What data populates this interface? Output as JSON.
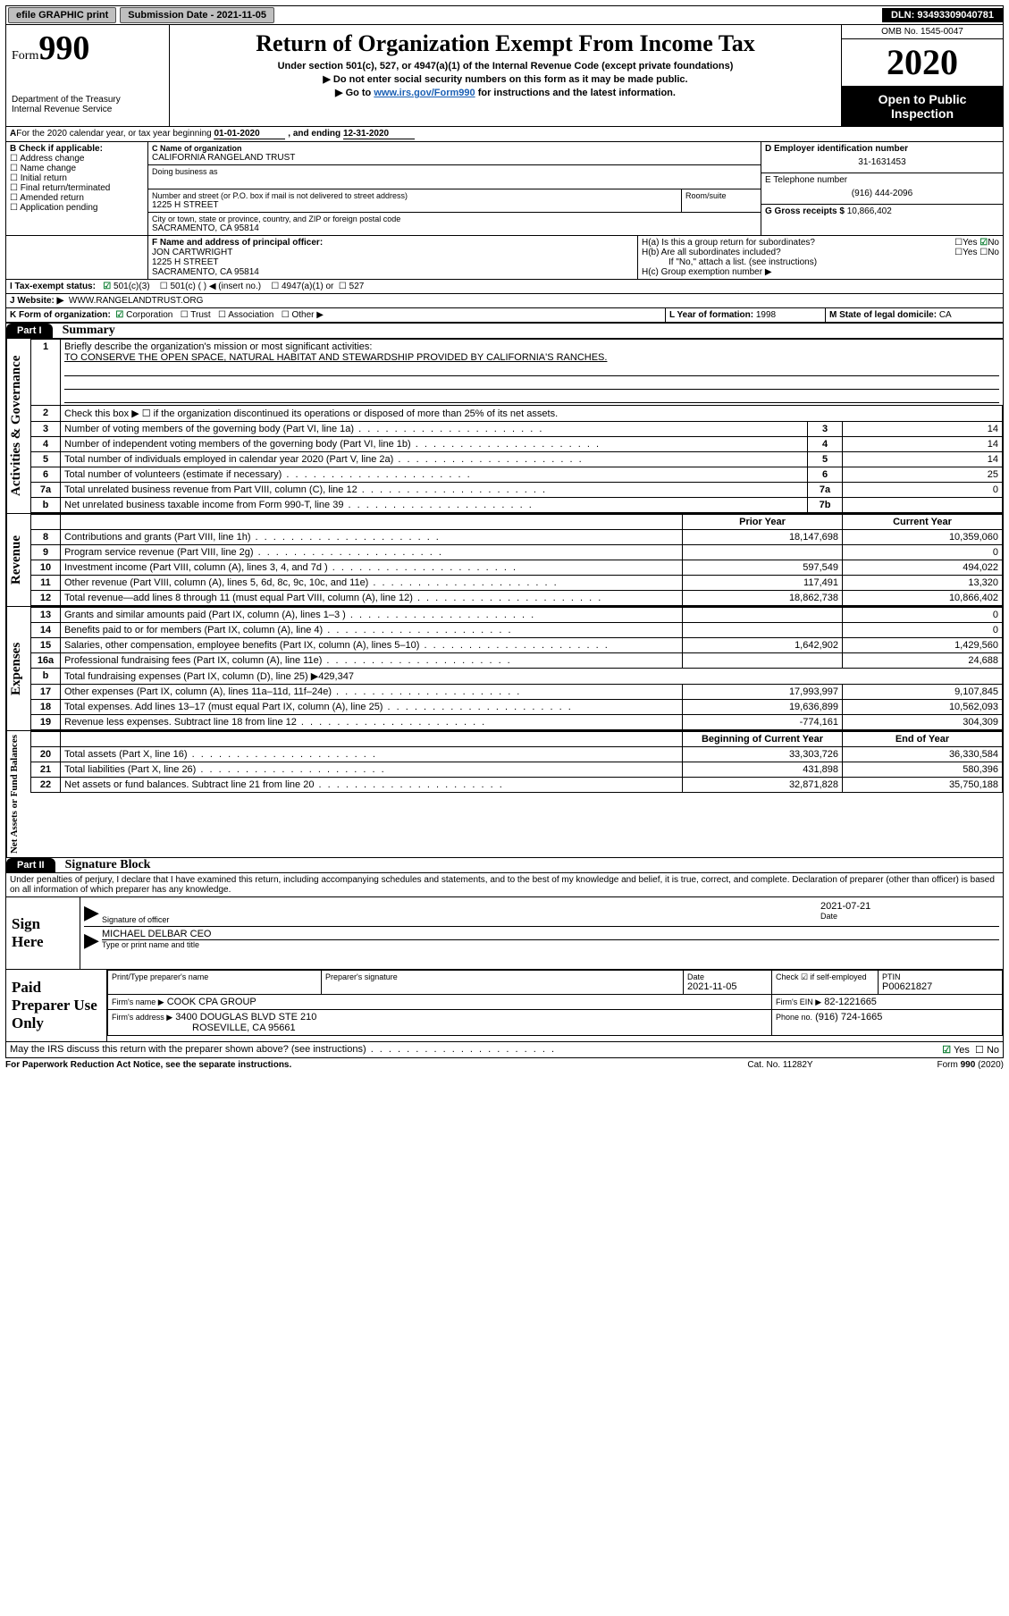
{
  "topbar": {
    "efile_label": "efile GRAPHIC print",
    "submission_date_label": "Submission Date - 2021-11-05",
    "dln_label": "DLN: 93493309040781"
  },
  "header": {
    "form_word": "Form",
    "form_number": "990",
    "dept1": "Department of the Treasury",
    "dept2": "Internal Revenue Service",
    "main_title": "Return of Organization Exempt From Income Tax",
    "subtitle": "Under section 501(c), 527, or 4947(a)(1) of the Internal Revenue Code (except private foundations)",
    "note1": "▶ Do not enter social security numbers on this form as it may be made public.",
    "note2_pre": "▶ Go to ",
    "note2_link": "www.irs.gov/Form990",
    "note2_post": " for instructions and the latest information.",
    "omb": "OMB No. 1545-0047",
    "year": "2020",
    "open1": "Open to Public",
    "open2": "Inspection"
  },
  "lineA": {
    "text_pre": "For the 2020 calendar year, or tax year beginning ",
    "begin": "01-01-2020",
    "mid": " , and ending ",
    "end": "12-31-2020"
  },
  "boxB": {
    "header": "B Check if applicable:",
    "items": [
      "Address change",
      "Name change",
      "Initial return",
      "Final return/terminated",
      "Amended return",
      "Application pending"
    ]
  },
  "boxC": {
    "label_name": "C Name of organization",
    "org_name": "CALIFORNIA RANGELAND TRUST",
    "dba_label": "Doing business as",
    "addr_label": "Number and street (or P.O. box if mail is not delivered to street address)",
    "room_label": "Room/suite",
    "street": "1225 H STREET",
    "city_label": "City or town, state or province, country, and ZIP or foreign postal code",
    "city": "SACRAMENTO, CA  95814"
  },
  "boxD": {
    "label": "D Employer identification number",
    "value": "31-1631453"
  },
  "boxE": {
    "label": "E Telephone number",
    "value": "(916) 444-2096"
  },
  "boxG": {
    "label": "G Gross receipts $",
    "value": "10,866,402"
  },
  "boxF": {
    "label": "F  Name and address of principal officer:",
    "name": "JON CARTWRIGHT",
    "street": "1225 H STREET",
    "city": "SACRAMENTO, CA  95814"
  },
  "boxH": {
    "a_label": "H(a)  Is this a group return for subordinates?",
    "b_label": "H(b)  Are all subordinates included?",
    "b_note": "If \"No,\" attach a list. (see instructions)",
    "c_label": "H(c)  Group exemption number ▶",
    "yes": "Yes",
    "no": "No"
  },
  "boxI": {
    "label": "I   Tax-exempt status:",
    "opt1": "501(c)(3)",
    "opt2": "501(c) (   )  ◀ (insert no.)",
    "opt3": "4947(a)(1) or",
    "opt4": "527"
  },
  "boxJ": {
    "label": "J   Website: ▶",
    "value": "WWW.RANGELANDTRUST.ORG"
  },
  "boxK": {
    "label": "K Form of organization:",
    "opt_corp": "Corporation",
    "opt_trust": "Trust",
    "opt_assoc": "Association",
    "opt_other": "Other ▶"
  },
  "boxL": {
    "label": "L Year of formation:",
    "value": "1998"
  },
  "boxM": {
    "label": "M State of legal domicile:",
    "value": "CA"
  },
  "part1": {
    "tab": "Part I",
    "title": "Summary"
  },
  "summary": {
    "line1_label": "Briefly describe the organization's mission or most significant activities:",
    "mission": "TO CONSERVE THE OPEN SPACE, NATURAL HABITAT AND STEWARDSHIP PROVIDED BY CALIFORNIA'S RANCHES.",
    "line2_label": "Check this box ▶ ☐  if the organization discontinued its operations or disposed of more than 25% of its net assets.",
    "rows_gov": [
      {
        "n": "3",
        "label": "Number of voting members of the governing body (Part VI, line 1a)",
        "box": "3",
        "val": "14"
      },
      {
        "n": "4",
        "label": "Number of independent voting members of the governing body (Part VI, line 1b)",
        "box": "4",
        "val": "14"
      },
      {
        "n": "5",
        "label": "Total number of individuals employed in calendar year 2020 (Part V, line 2a)",
        "box": "5",
        "val": "14"
      },
      {
        "n": "6",
        "label": "Total number of volunteers (estimate if necessary)",
        "box": "6",
        "val": "25"
      },
      {
        "n": "7a",
        "label": "Total unrelated business revenue from Part VIII, column (C), line 12",
        "box": "7a",
        "val": "0"
      },
      {
        "n": "b",
        "label": "Net unrelated business taxable income from Form 990-T, line 39",
        "box": "7b",
        "val": ""
      }
    ],
    "col_prior": "Prior Year",
    "col_current": "Current Year",
    "rows_rev": [
      {
        "n": "8",
        "label": "Contributions and grants (Part VIII, line 1h)",
        "prior": "18,147,698",
        "curr": "10,359,060"
      },
      {
        "n": "9",
        "label": "Program service revenue (Part VIII, line 2g)",
        "prior": "",
        "curr": "0"
      },
      {
        "n": "10",
        "label": "Investment income (Part VIII, column (A), lines 3, 4, and 7d )",
        "prior": "597,549",
        "curr": "494,022"
      },
      {
        "n": "11",
        "label": "Other revenue (Part VIII, column (A), lines 5, 6d, 8c, 9c, 10c, and 11e)",
        "prior": "117,491",
        "curr": "13,320"
      },
      {
        "n": "12",
        "label": "Total revenue—add lines 8 through 11 (must equal Part VIII, column (A), line 12)",
        "prior": "18,862,738",
        "curr": "10,866,402"
      }
    ],
    "rows_exp": [
      {
        "n": "13",
        "label": "Grants and similar amounts paid (Part IX, column (A), lines 1–3 )",
        "prior": "",
        "curr": "0"
      },
      {
        "n": "14",
        "label": "Benefits paid to or for members (Part IX, column (A), line 4)",
        "prior": "",
        "curr": "0"
      },
      {
        "n": "15",
        "label": "Salaries, other compensation, employee benefits (Part IX, column (A), lines 5–10)",
        "prior": "1,642,902",
        "curr": "1,429,560"
      },
      {
        "n": "16a",
        "label": "Professional fundraising fees (Part IX, column (A), line 11e)",
        "prior": "",
        "curr": "24,688"
      },
      {
        "n": "b",
        "label": "Total fundraising expenses (Part IX, column (D), line 25) ▶429,347",
        "prior": "",
        "curr": "",
        "noval": true
      },
      {
        "n": "17",
        "label": "Other expenses (Part IX, column (A), lines 11a–11d, 11f–24e)",
        "prior": "17,993,997",
        "curr": "9,107,845"
      },
      {
        "n": "18",
        "label": "Total expenses. Add lines 13–17 (must equal Part IX, column (A), line 25)",
        "prior": "19,636,899",
        "curr": "10,562,093"
      },
      {
        "n": "19",
        "label": "Revenue less expenses. Subtract line 18 from line 12",
        "prior": "-774,161",
        "curr": "304,309"
      }
    ],
    "col_begin": "Beginning of Current Year",
    "col_end": "End of Year",
    "rows_net": [
      {
        "n": "20",
        "label": "Total assets (Part X, line 16)",
        "prior": "33,303,726",
        "curr": "36,330,584"
      },
      {
        "n": "21",
        "label": "Total liabilities (Part X, line 26)",
        "prior": "431,898",
        "curr": "580,396"
      },
      {
        "n": "22",
        "label": "Net assets or fund balances. Subtract line 21 from line 20",
        "prior": "32,871,828",
        "curr": "35,750,188"
      }
    ]
  },
  "side_labels": {
    "gov": "Activities & Governance",
    "rev": "Revenue",
    "exp": "Expenses",
    "net": "Net Assets or Fund Balances"
  },
  "part2": {
    "tab": "Part II",
    "title": "Signature Block"
  },
  "sig": {
    "perjury": "Under penalties of perjury, I declare that I have examined this return, including accompanying schedules and statements, and to the best of my knowledge and belief, it is true, correct, and complete. Declaration of preparer (other than officer) is based on all information of which preparer has any knowledge.",
    "sign_here": "Sign Here",
    "sig_officer_label": "Signature of officer",
    "date_label": "Date",
    "sig_date": "2021-07-21",
    "name_title": "MICHAEL DELBAR  CEO",
    "name_title_label": "Type or print name and title",
    "paid_prep": "Paid Preparer Use Only",
    "col_preparer_name": "Print/Type preparer's name",
    "col_preparer_sig": "Preparer's signature",
    "col_date": "Date",
    "prep_date": "2021-11-05",
    "check_if": "Check ☑ if self-employed",
    "ptin_label": "PTIN",
    "ptin": "P00621827",
    "firm_name_label": "Firm's name    ▶",
    "firm_name": "COOK CPA GROUP",
    "firm_ein_label": "Firm's EIN ▶",
    "firm_ein": "82-1221665",
    "firm_addr_label": "Firm's address ▶",
    "firm_addr1": "3400 DOUGLAS BLVD STE 210",
    "firm_addr2": "ROSEVILLE, CA  95661",
    "phone_label": "Phone no.",
    "phone": "(916) 724-1665",
    "discuss": "May the IRS discuss this return with the preparer shown above? (see instructions)"
  },
  "footer": {
    "paperwork": "For Paperwork Reduction Act Notice, see the separate instructions.",
    "catno": "Cat. No. 11282Y",
    "formver": "Form 990 (2020)"
  },
  "style": {
    "link_color": "#1a5fb4",
    "check_green": "#0a7c2f"
  }
}
